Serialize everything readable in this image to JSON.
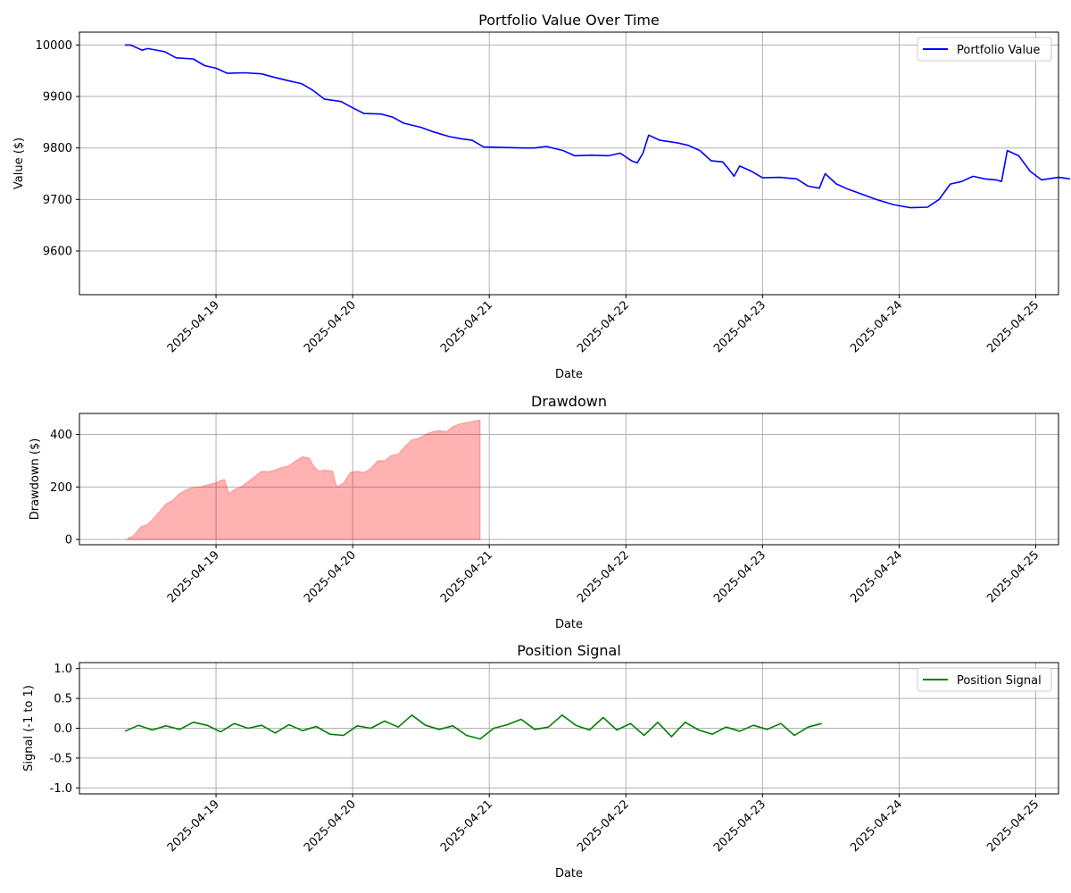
{
  "chart_data": [
    {
      "type": "line",
      "title": "Portfolio Value Over Time",
      "xlabel": "Date",
      "ylabel": "Value ($)",
      "xlim": [
        "2025-04-18T00:00",
        "2025-04-25T04:00"
      ],
      "ylim": [
        9515,
        10025
      ],
      "yticks": [
        9600,
        9700,
        9800,
        9900,
        10000
      ],
      "xticks": [
        "2025-04-19",
        "2025-04-20",
        "2025-04-21",
        "2025-04-22",
        "2025-04-23",
        "2025-04-24",
        "2025-04-25"
      ],
      "grid": true,
      "legend": "top-right",
      "series": [
        {
          "name": "Portfolio Value",
          "color": "#0000ff",
          "points": [
            [
              "2025-04-18T08:00",
              10000
            ],
            [
              "2025-04-18T09:00",
              10000
            ],
            [
              "2025-04-18T11:00",
              9990
            ],
            [
              "2025-04-18T12:00",
              9993
            ],
            [
              "2025-04-18T15:00",
              9987
            ],
            [
              "2025-04-18T17:00",
              9975
            ],
            [
              "2025-04-18T20:00",
              9973
            ],
            [
              "2025-04-18T22:00",
              9960
            ],
            [
              "2025-04-19T00:00",
              9955
            ],
            [
              "2025-04-19T02:00",
              9945
            ],
            [
              "2025-04-19T05:00",
              9946
            ],
            [
              "2025-04-19T08:00",
              9944
            ],
            [
              "2025-04-19T10:00",
              9938
            ],
            [
              "2025-04-19T13:00",
              9930
            ],
            [
              "2025-04-19T15:00",
              9925
            ],
            [
              "2025-04-19T17:00",
              9912
            ],
            [
              "2025-04-19T19:00",
              9895
            ],
            [
              "2025-04-19T22:00",
              9890
            ],
            [
              "2025-04-20T00:00",
              9878
            ],
            [
              "2025-04-20T02:00",
              9867
            ],
            [
              "2025-04-20T05:00",
              9866
            ],
            [
              "2025-04-20T07:00",
              9860
            ],
            [
              "2025-04-20T09:00",
              9848
            ],
            [
              "2025-04-20T12:00",
              9840
            ],
            [
              "2025-04-20T14:00",
              9832
            ],
            [
              "2025-04-20T17:00",
              9822
            ],
            [
              "2025-04-20T19:00",
              9818
            ],
            [
              "2025-04-20T21:00",
              9815
            ],
            [
              "2025-04-20T23:00",
              9802
            ],
            [
              "2025-04-21T02:00",
              9801
            ],
            [
              "2025-04-21T06:00",
              9800
            ],
            [
              "2025-04-21T08:00",
              9800
            ],
            [
              "2025-04-21T10:00",
              9803
            ],
            [
              "2025-04-21T13:00",
              9795
            ],
            [
              "2025-04-21T15:00",
              9785
            ],
            [
              "2025-04-21T18:00",
              9786
            ],
            [
              "2025-04-21T21:00",
              9785
            ],
            [
              "2025-04-21T23:00",
              9790
            ],
            [
              "2025-04-22T01:00",
              9775
            ],
            [
              "2025-04-22T02:00",
              9771
            ],
            [
              "2025-04-22T03:00",
              9790
            ],
            [
              "2025-04-22T04:00",
              9825
            ],
            [
              "2025-04-22T06:00",
              9815
            ],
            [
              "2025-04-22T09:00",
              9810
            ],
            [
              "2025-04-22T11:00",
              9805
            ],
            [
              "2025-04-22T13:00",
              9795
            ],
            [
              "2025-04-22T15:00",
              9775
            ],
            [
              "2025-04-22T17:00",
              9773
            ],
            [
              "2025-04-22T18:00",
              9760
            ],
            [
              "2025-04-22T19:00",
              9745
            ],
            [
              "2025-04-22T20:00",
              9765
            ],
            [
              "2025-04-22T22:00",
              9755
            ],
            [
              "2025-04-23T00:00",
              9742
            ],
            [
              "2025-04-23T03:00",
              9743
            ],
            [
              "2025-04-23T06:00",
              9740
            ],
            [
              "2025-04-23T08:00",
              9726
            ],
            [
              "2025-04-23T10:00",
              9722
            ],
            [
              "2025-04-23T11:00",
              9750
            ],
            [
              "2025-04-23T13:00",
              9730
            ],
            [
              "2025-04-23T15:00",
              9720
            ],
            [
              "2025-04-23T17:00",
              9712
            ],
            [
              "2025-04-23T20:00",
              9700
            ],
            [
              "2025-04-23T23:00",
              9690
            ],
            [
              "2025-04-24T02:00",
              9684
            ],
            [
              "2025-04-24T05:00",
              9685
            ],
            [
              "2025-04-24T07:00",
              9700
            ],
            [
              "2025-04-24T09:00",
              9730
            ],
            [
              "2025-04-24T11:00",
              9735
            ],
            [
              "2025-04-24T13:00",
              9745
            ],
            [
              "2025-04-24T15:00",
              9740
            ],
            [
              "2025-04-24T17:00",
              9738
            ],
            [
              "2025-04-24T18:00",
              9735
            ],
            [
              "2025-04-24T19:00",
              9795
            ],
            [
              "2025-04-24T21:00",
              9785
            ],
            [
              "2025-04-24T23:00",
              9755
            ],
            [
              "2025-04-25T01:00",
              9738
            ],
            [
              "2025-04-25T04:00",
              9743
            ],
            [
              "2025-04-25T06:00",
              9740
            ]
          ]
        }
      ]
    },
    {
      "type": "area",
      "title": "Drawdown",
      "xlabel": "Date",
      "ylabel": "Drawdown ($)",
      "ylim": [
        -20,
        480
      ],
      "yticks": [
        0,
        200,
        400
      ],
      "xticks": [
        "2025-04-19",
        "2025-04-20",
        "2025-04-21",
        "2025-04-22",
        "2025-04-23",
        "2025-04-24",
        "2025-04-25"
      ],
      "grid": true,
      "series": [
        {
          "name": "",
          "color": "#ff0000",
          "points": [
            [
              0.0,
              0
            ],
            [
              0.02,
              0
            ],
            [
              0.03,
              8
            ],
            [
              0.05,
              10
            ],
            [
              0.08,
              25
            ],
            [
              0.12,
              50
            ],
            [
              0.16,
              55
            ],
            [
              0.2,
              75
            ],
            [
              0.25,
              105
            ],
            [
              0.3,
              135
            ],
            [
              0.35,
              150
            ],
            [
              0.4,
              175
            ],
            [
              0.45,
              190
            ],
            [
              0.5,
              198
            ],
            [
              0.55,
              200
            ],
            [
              0.58,
              205
            ],
            [
              0.62,
              210
            ],
            [
              0.66,
              215
            ],
            [
              0.7,
              225
            ],
            [
              0.73,
              228
            ],
            [
              0.76,
              175
            ],
            [
              0.8,
              190
            ],
            [
              0.85,
              200
            ],
            [
              0.9,
              220
            ],
            [
              0.95,
              240
            ],
            [
              1.0,
              260
            ],
            [
              1.05,
              258
            ],
            [
              1.1,
              265
            ],
            [
              1.15,
              275
            ],
            [
              1.2,
              280
            ],
            [
              1.25,
              300
            ],
            [
              1.3,
              315
            ],
            [
              1.35,
              310
            ],
            [
              1.38,
              280
            ],
            [
              1.42,
              260
            ],
            [
              1.46,
              265
            ],
            [
              1.52,
              260
            ],
            [
              1.55,
              200
            ],
            [
              1.6,
              215
            ],
            [
              1.65,
              255
            ],
            [
              1.7,
              260
            ],
            [
              1.75,
              255
            ],
            [
              1.8,
              270
            ],
            [
              1.85,
              300
            ],
            [
              1.9,
              300
            ],
            [
              1.95,
              320
            ],
            [
              2.0,
              325
            ],
            [
              2.05,
              355
            ],
            [
              2.1,
              380
            ],
            [
              2.15,
              385
            ],
            [
              2.2,
              400
            ],
            [
              2.25,
              410
            ],
            [
              2.3,
              415
            ],
            [
              2.35,
              410
            ],
            [
              2.4,
              430
            ],
            [
              2.45,
              440
            ],
            [
              2.5,
              445
            ],
            [
              2.55,
              450
            ],
            [
              2.6,
              455
            ]
          ]
        }
      ]
    },
    {
      "type": "line",
      "title": "Position Signal",
      "xlabel": "Date",
      "ylabel": "Signal (-1 to 1)",
      "ylim": [
        -1.1,
        1.1
      ],
      "yticks": [
        -1.0,
        -0.5,
        0.0,
        0.5,
        1.0
      ],
      "xticks": [
        "2025-04-19",
        "2025-04-20",
        "2025-04-21",
        "2025-04-22",
        "2025-04-23",
        "2025-04-24",
        "2025-04-25"
      ],
      "grid": true,
      "legend": "top-right",
      "series": [
        {
          "name": "Position Signal",
          "color": "#008000",
          "points": [
            [
              0.0,
              -0.05
            ],
            [
              0.1,
              0.05
            ],
            [
              0.2,
              -0.03
            ],
            [
              0.3,
              0.04
            ],
            [
              0.4,
              -0.02
            ],
            [
              0.5,
              0.1
            ],
            [
              0.6,
              0.05
            ],
            [
              0.7,
              -0.06
            ],
            [
              0.8,
              0.08
            ],
            [
              0.9,
              0.0
            ],
            [
              1.0,
              0.05
            ],
            [
              1.1,
              -0.08
            ],
            [
              1.2,
              0.06
            ],
            [
              1.3,
              -0.04
            ],
            [
              1.4,
              0.03
            ],
            [
              1.5,
              -0.1
            ],
            [
              1.6,
              -0.12
            ],
            [
              1.7,
              0.04
            ],
            [
              1.8,
              0.0
            ],
            [
              1.9,
              0.12
            ],
            [
              2.0,
              0.02
            ],
            [
              2.1,
              0.22
            ],
            [
              2.2,
              0.05
            ],
            [
              2.3,
              -0.02
            ],
            [
              2.4,
              0.04
            ],
            [
              2.5,
              -0.12
            ],
            [
              2.6,
              -0.18
            ],
            [
              2.7,
              0.0
            ],
            [
              2.8,
              0.06
            ],
            [
              2.9,
              0.15
            ],
            [
              3.0,
              -0.02
            ],
            [
              3.1,
              0.02
            ],
            [
              3.2,
              0.22
            ],
            [
              3.3,
              0.05
            ],
            [
              3.4,
              -0.03
            ],
            [
              3.5,
              0.18
            ],
            [
              3.6,
              -0.03
            ],
            [
              3.7,
              0.08
            ],
            [
              3.8,
              -0.12
            ],
            [
              3.9,
              0.1
            ],
            [
              4.0,
              -0.14
            ],
            [
              4.1,
              0.1
            ],
            [
              4.2,
              -0.03
            ],
            [
              4.3,
              -0.1
            ],
            [
              4.4,
              0.02
            ],
            [
              4.5,
              -0.05
            ],
            [
              4.6,
              0.05
            ],
            [
              4.7,
              -0.02
            ],
            [
              4.8,
              0.08
            ],
            [
              4.9,
              -0.12
            ],
            [
              5.0,
              0.02
            ],
            [
              5.1,
              0.08
            ]
          ]
        }
      ]
    }
  ]
}
